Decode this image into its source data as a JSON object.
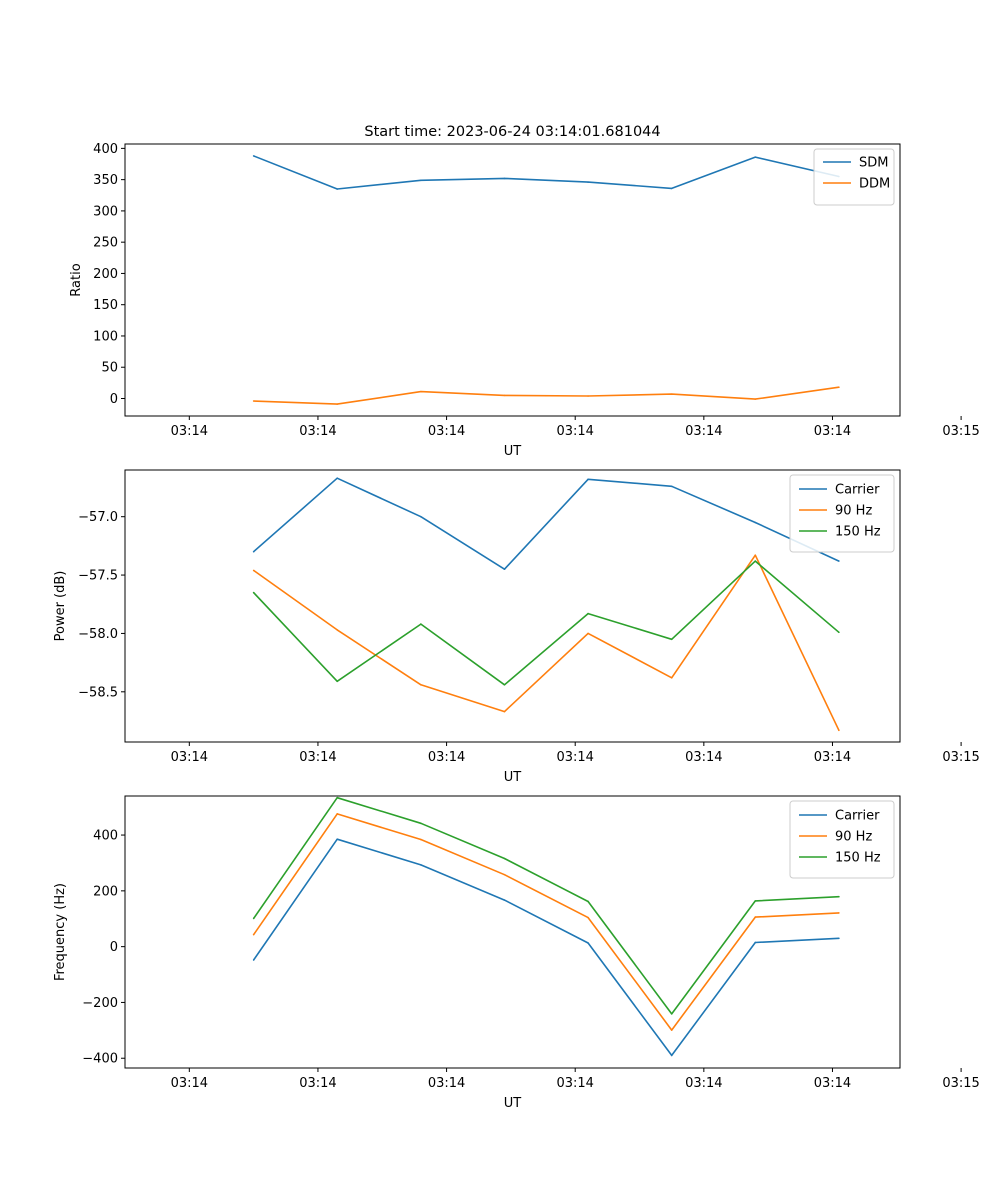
{
  "figure": {
    "title": "Start time: 2023-06-24 03:14:01.681044"
  },
  "colors": {
    "blue": "#1f77b4",
    "orange": "#ff7f0e",
    "green": "#2ca02c"
  },
  "chart_data": [
    {
      "type": "line",
      "xlabel": "UT",
      "ylabel": "Ratio",
      "x_tick_labels": [
        "03:14",
        "03:14",
        "03:14",
        "03:14",
        "03:14",
        "03:14",
        "03:15"
      ],
      "x_ticks": [
        0,
        2,
        4,
        6,
        8,
        10,
        12
      ],
      "xlim": [
        -1.0,
        11.05
      ],
      "x": [
        1,
        2.3,
        3.6,
        4.9,
        6.2,
        7.5,
        8.8,
        10.1
      ],
      "y_ticks": [
        0,
        50,
        100,
        150,
        200,
        250,
        300,
        350,
        400
      ],
      "ylim": [
        -28,
        407
      ],
      "legend_position": "upper right",
      "series": [
        {
          "name": "SDM",
          "color": "#1f77b4",
          "values": [
            388,
            335,
            349,
            352,
            346,
            336,
            386,
            355
          ]
        },
        {
          "name": "DDM",
          "color": "#ff7f0e",
          "values": [
            -4,
            -9,
            11,
            5,
            4,
            7,
            -1,
            18
          ]
        }
      ]
    },
    {
      "type": "line",
      "xlabel": "UT",
      "ylabel": "Power (dB)",
      "x_tick_labels": [
        "03:14",
        "03:14",
        "03:14",
        "03:14",
        "03:14",
        "03:14",
        "03:15"
      ],
      "x_ticks": [
        0,
        2,
        4,
        6,
        8,
        10,
        12
      ],
      "xlim": [
        -1.0,
        11.05
      ],
      "x": [
        1,
        2.3,
        3.6,
        4.9,
        6.2,
        7.5,
        8.8,
        10.1
      ],
      "y_ticks": [
        -57.0,
        -57.5,
        -58.0,
        -58.5
      ],
      "y_tick_labels": [
        "−57.0",
        "−57.5",
        "−58.0",
        "−58.5"
      ],
      "ylim": [
        -58.93,
        -56.6
      ],
      "legend_position": "upper right",
      "series": [
        {
          "name": "Carrier",
          "color": "#1f77b4",
          "values": [
            -57.3,
            -56.67,
            -57.0,
            -57.45,
            -56.68,
            -56.74,
            -57.05,
            -57.38
          ]
        },
        {
          "name": "90 Hz",
          "color": "#ff7f0e",
          "values": [
            -57.46,
            -57.97,
            -58.44,
            -58.67,
            -58.0,
            -58.38,
            -57.33,
            -58.83
          ]
        },
        {
          "name": "150 Hz",
          "color": "#2ca02c",
          "values": [
            -57.65,
            -58.41,
            -57.92,
            -58.44,
            -57.83,
            -58.05,
            -57.38,
            -57.99
          ]
        }
      ]
    },
    {
      "type": "line",
      "xlabel": "UT",
      "ylabel": "Frequency (Hz)",
      "x_tick_labels": [
        "03:14",
        "03:14",
        "03:14",
        "03:14",
        "03:14",
        "03:14",
        "03:15"
      ],
      "x_ticks": [
        0,
        2,
        4,
        6,
        8,
        10,
        12
      ],
      "xlim": [
        -1.0,
        11.05
      ],
      "x": [
        1,
        2.3,
        3.6,
        4.9,
        6.2,
        7.5,
        8.8,
        10.1
      ],
      "y_ticks": [
        -400,
        -200,
        0,
        200,
        400
      ],
      "y_tick_labels": [
        "−400",
        "−200",
        "0",
        "200",
        "400"
      ],
      "ylim": [
        -435,
        540
      ],
      "legend_position": "upper right",
      "series": [
        {
          "name": "Carrier",
          "color": "#1f77b4",
          "values": [
            -48,
            385,
            293,
            167,
            13,
            -390,
            15,
            30
          ]
        },
        {
          "name": "90 Hz",
          "color": "#ff7f0e",
          "values": [
            43,
            476,
            384,
            258,
            104,
            -299,
            106,
            121
          ]
        },
        {
          "name": "150 Hz",
          "color": "#2ca02c",
          "values": [
            101,
            534,
            442,
            316,
            162,
            -241,
            164,
            179
          ]
        }
      ]
    }
  ]
}
